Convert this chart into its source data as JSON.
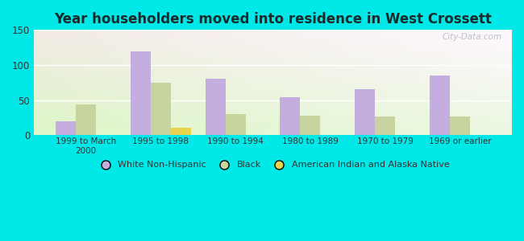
{
  "title": "Year householders moved into residence in West Crossett",
  "categories": [
    "1999 to March\n2000",
    "1995 to 1998",
    "1990 to 1994",
    "1980 to 1989",
    "1970 to 1979",
    "1969 or earlier"
  ],
  "white_non_hispanic": [
    20,
    119,
    81,
    54,
    66,
    85
  ],
  "black": [
    44,
    75,
    30,
    28,
    27,
    27
  ],
  "american_indian": [
    0,
    10,
    0,
    0,
    0,
    0
  ],
  "colors": {
    "white_non_hispanic": "#c4aee0",
    "black": "#c8d4a0",
    "american_indian": "#e8d44d"
  },
  "legend_labels": [
    "White Non-Hispanic",
    "Black",
    "American Indian and Alaska Native"
  ],
  "ylim": [
    0,
    150
  ],
  "yticks": [
    0,
    50,
    100,
    150
  ],
  "background_color": "#00e8e8",
  "watermark": "City-Data.com",
  "bar_width": 0.27,
  "title_color": "#1a2a2a",
  "title_fontsize": 12
}
